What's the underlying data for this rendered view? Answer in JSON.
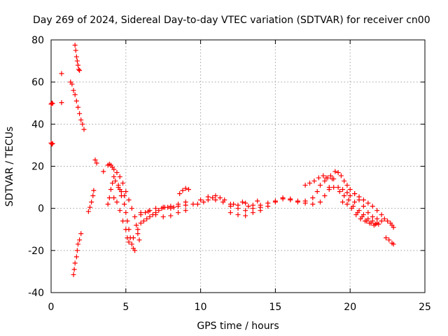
{
  "chart_data": {
    "type": "scatter",
    "title": "Day 269 of 2024, Sidereal Day-to-day VTEC variation (SDTVAR) for receiver cn00",
    "xlabel": "GPS time / hours",
    "ylabel": "SDTVAR / TECUs",
    "xlim": [
      0,
      25
    ],
    "ylim": [
      -40,
      80
    ],
    "xticks": [
      0,
      5,
      10,
      15,
      20,
      25
    ],
    "yticks": [
      -40,
      -20,
      0,
      20,
      40,
      60,
      80
    ],
    "grid": true,
    "marker": "+",
    "series": [
      {
        "name": "SDTVAR",
        "color": "#ff0000",
        "points": [
          [
            0.0,
            49.5
          ],
          [
            0.05,
            50.0
          ],
          [
            0.1,
            49.8
          ],
          [
            0.0,
            31.0
          ],
          [
            0.05,
            30.5
          ],
          [
            0.1,
            30.8
          ],
          [
            0.7,
            64.0
          ],
          [
            0.7,
            50.2
          ],
          [
            1.3,
            60
          ],
          [
            1.4,
            59
          ],
          [
            1.5,
            56
          ],
          [
            1.6,
            54
          ],
          [
            1.7,
            51
          ],
          [
            1.8,
            48
          ],
          [
            1.9,
            45
          ],
          [
            2.0,
            42
          ],
          [
            2.1,
            40
          ],
          [
            2.2,
            37.5
          ],
          [
            1.6,
            77.5
          ],
          [
            1.65,
            75
          ],
          [
            1.7,
            72
          ],
          [
            1.75,
            70
          ],
          [
            1.8,
            68
          ],
          [
            1.85,
            66
          ],
          [
            1.9,
            65.5
          ],
          [
            1.5,
            -31.5
          ],
          [
            1.55,
            -29
          ],
          [
            1.6,
            -26
          ],
          [
            1.7,
            -23
          ],
          [
            1.75,
            -20
          ],
          [
            1.8,
            -17
          ],
          [
            1.9,
            -15
          ],
          [
            2.0,
            -12
          ],
          [
            2.5,
            -1.5
          ],
          [
            2.6,
            0.5
          ],
          [
            2.7,
            3
          ],
          [
            2.8,
            6
          ],
          [
            2.85,
            8.5
          ],
          [
            2.95,
            23
          ],
          [
            3.05,
            21.5
          ],
          [
            3.5,
            17.5
          ],
          [
            3.8,
            20.5
          ],
          [
            3.9,
            21
          ],
          [
            4.0,
            20.5
          ],
          [
            4.1,
            19.5
          ],
          [
            4.2,
            18.5
          ],
          [
            4.4,
            17
          ],
          [
            4.6,
            15
          ],
          [
            4.8,
            12
          ],
          [
            5.0,
            8
          ],
          [
            5.2,
            4
          ],
          [
            5.4,
            0
          ],
          [
            5.6,
            -4
          ],
          [
            5.7,
            -8
          ],
          [
            5.8,
            -12
          ],
          [
            5.9,
            -15
          ],
          [
            3.8,
            2
          ],
          [
            3.9,
            5
          ],
          [
            4.0,
            9
          ],
          [
            4.1,
            12
          ],
          [
            4.2,
            15
          ],
          [
            4.3,
            13
          ],
          [
            4.5,
            10
          ],
          [
            4.7,
            6
          ],
          [
            4.9,
            2
          ],
          [
            5.0,
            -2
          ],
          [
            5.1,
            -6
          ],
          [
            5.2,
            -10
          ],
          [
            5.3,
            -14
          ],
          [
            5.4,
            -17
          ],
          [
            5.5,
            -19
          ],
          [
            5.6,
            -20
          ],
          [
            4.2,
            5
          ],
          [
            4.4,
            3
          ],
          [
            4.6,
            -1
          ],
          [
            4.8,
            -6
          ],
          [
            5.0,
            -10
          ],
          [
            5.1,
            -14
          ],
          [
            5.2,
            -16
          ],
          [
            5.5,
            -14
          ],
          [
            5.8,
            -10
          ],
          [
            4.5,
            11
          ],
          [
            4.6,
            9
          ],
          [
            4.7,
            8
          ],
          [
            4.9,
            6
          ],
          [
            6.0,
            -7
          ],
          [
            6.2,
            -6
          ],
          [
            6.4,
            -5
          ],
          [
            6.6,
            -4
          ],
          [
            6.8,
            -3
          ],
          [
            7.0,
            -2
          ],
          [
            7.2,
            -1
          ],
          [
            7.4,
            0
          ],
          [
            7.6,
            0.5
          ],
          [
            7.8,
            0.5
          ],
          [
            8.0,
            0
          ],
          [
            8.2,
            0.5
          ],
          [
            8.5,
            1
          ],
          [
            9.0,
            1.5
          ],
          [
            9.5,
            2
          ],
          [
            6.0,
            -3
          ],
          [
            6.3,
            -2
          ],
          [
            6.6,
            -1
          ],
          [
            7.0,
            -3
          ],
          [
            7.5,
            -4
          ],
          [
            8.0,
            -3.5
          ],
          [
            8.5,
            -2
          ],
          [
            9.0,
            -1
          ],
          [
            6.0,
            -2
          ],
          [
            6.5,
            -1.5
          ],
          [
            7.0,
            0
          ],
          [
            7.5,
            0.5
          ],
          [
            8.0,
            1
          ],
          [
            8.5,
            2
          ],
          [
            9.0,
            3
          ],
          [
            8.6,
            7
          ],
          [
            8.8,
            8.5
          ],
          [
            9.0,
            9.5
          ],
          [
            9.2,
            9
          ],
          [
            9.8,
            2
          ],
          [
            10.2,
            3
          ],
          [
            10.5,
            4
          ],
          [
            10.8,
            5
          ],
          [
            11.0,
            6
          ],
          [
            11.3,
            5
          ],
          [
            11.6,
            4
          ],
          [
            12.0,
            2
          ],
          [
            12.5,
            0
          ],
          [
            13.0,
            -1
          ],
          [
            13.5,
            0
          ],
          [
            14.0,
            1.5
          ],
          [
            14.5,
            2.5
          ],
          [
            15.0,
            3.5
          ],
          [
            15.5,
            4.5
          ],
          [
            16.0,
            4.5
          ],
          [
            16.5,
            3.5
          ],
          [
            17.0,
            2.5
          ],
          [
            17.5,
            2
          ],
          [
            10.0,
            4
          ],
          [
            10.5,
            5.5
          ],
          [
            11.0,
            4
          ],
          [
            11.5,
            3
          ],
          [
            12.0,
            1
          ],
          [
            12.5,
            1.5
          ],
          [
            13.0,
            2.5
          ],
          [
            13.5,
            1.5
          ],
          [
            14.0,
            0.5
          ],
          [
            14.5,
            1
          ],
          [
            15.0,
            3
          ],
          [
            15.5,
            5
          ],
          [
            16.0,
            4
          ],
          [
            16.5,
            3
          ],
          [
            17.0,
            3.5
          ],
          [
            12.0,
            -2
          ],
          [
            12.5,
            -3
          ],
          [
            13.0,
            -3.5
          ],
          [
            13.5,
            -2
          ],
          [
            14.0,
            -1
          ],
          [
            12.2,
            2
          ],
          [
            12.8,
            3
          ],
          [
            13.2,
            1
          ],
          [
            13.8,
            3.5
          ],
          [
            17.5,
            5
          ],
          [
            17.8,
            8
          ],
          [
            18.0,
            11
          ],
          [
            18.3,
            13
          ],
          [
            18.5,
            14.5
          ],
          [
            18.7,
            15.5
          ],
          [
            18.8,
            14
          ],
          [
            17.0,
            11
          ],
          [
            17.3,
            12
          ],
          [
            17.6,
            13
          ],
          [
            17.9,
            14.5
          ],
          [
            18.2,
            15.5
          ],
          [
            18.4,
            14.5
          ],
          [
            18.0,
            3
          ],
          [
            18.3,
            6
          ],
          [
            18.6,
            10
          ],
          [
            18.9,
            14
          ],
          [
            19.0,
            17.5
          ],
          [
            19.2,
            17
          ],
          [
            19.4,
            15.5
          ],
          [
            19.6,
            13
          ],
          [
            19.8,
            11
          ],
          [
            18.6,
            9
          ],
          [
            18.9,
            10
          ],
          [
            19.2,
            10
          ],
          [
            19.5,
            9
          ],
          [
            19.8,
            7.5
          ],
          [
            20.0,
            6
          ],
          [
            20.3,
            3
          ],
          [
            20.6,
            -1
          ],
          [
            20.9,
            -3
          ],
          [
            21.2,
            -5
          ],
          [
            21.5,
            -6
          ],
          [
            21.8,
            -7
          ],
          [
            19.3,
            8
          ],
          [
            19.6,
            6
          ],
          [
            19.9,
            4
          ],
          [
            20.2,
            1
          ],
          [
            20.5,
            -2
          ],
          [
            20.8,
            -4
          ],
          [
            21.1,
            -6
          ],
          [
            21.4,
            -7
          ],
          [
            21.7,
            -7.5
          ],
          [
            20.0,
            9
          ],
          [
            20.3,
            7
          ],
          [
            20.6,
            4
          ],
          [
            20.9,
            1
          ],
          [
            21.2,
            -2
          ],
          [
            21.5,
            -4
          ],
          [
            21.8,
            -5
          ],
          [
            22.1,
            -6
          ],
          [
            20.3,
            7
          ],
          [
            20.6,
            5.5
          ],
          [
            20.9,
            4
          ],
          [
            21.2,
            2.5
          ],
          [
            21.5,
            1
          ],
          [
            21.8,
            -1
          ],
          [
            22.1,
            -3
          ],
          [
            19.5,
            3
          ],
          [
            19.8,
            2
          ],
          [
            20.1,
            0
          ],
          [
            20.4,
            -3
          ],
          [
            20.7,
            -5
          ],
          [
            21.0,
            -6
          ],
          [
            21.3,
            -7
          ],
          [
            21.6,
            -8
          ],
          [
            21.9,
            -7.5
          ],
          [
            22.3,
            -5
          ],
          [
            22.5,
            -6
          ],
          [
            22.7,
            -7
          ],
          [
            22.8,
            -8
          ],
          [
            22.9,
            -9
          ],
          [
            22.4,
            -14
          ],
          [
            22.6,
            -15
          ],
          [
            22.8,
            -16.5
          ],
          [
            22.9,
            -17
          ]
        ]
      }
    ]
  }
}
